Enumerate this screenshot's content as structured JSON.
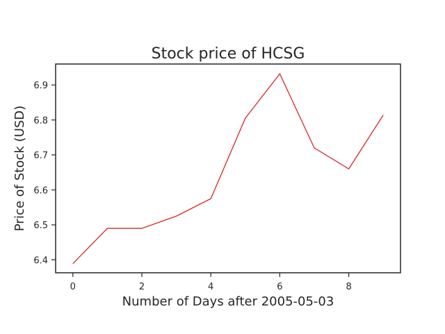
{
  "chart_data": {
    "type": "line",
    "title": "Stock price of HCSG",
    "xlabel": "Number of Days after 2005-05-03",
    "ylabel": "Price of Stock (USD)",
    "x": [
      0,
      1,
      2,
      3,
      4,
      5,
      6,
      7,
      8,
      9
    ],
    "series": [
      {
        "values": [
          6.389,
          6.49,
          6.49,
          6.525,
          6.575,
          6.805,
          6.932,
          6.72,
          6.66,
          6.814
        ],
        "color": "#d62728"
      }
    ],
    "xlim": [
      -0.5,
      9.5
    ],
    "ylim": [
      6.363,
      6.96
    ],
    "xticks": [
      0,
      2,
      4,
      6,
      8
    ],
    "xtick_labels": [
      "0",
      "2",
      "4",
      "6",
      "8"
    ],
    "yticks": [
      6.4,
      6.5,
      6.6,
      6.7,
      6.8,
      6.9
    ],
    "ytick_labels": [
      "6.4",
      "6.5",
      "6.6",
      "6.7",
      "6.8",
      "6.9"
    ],
    "grid": false,
    "legend": false
  }
}
